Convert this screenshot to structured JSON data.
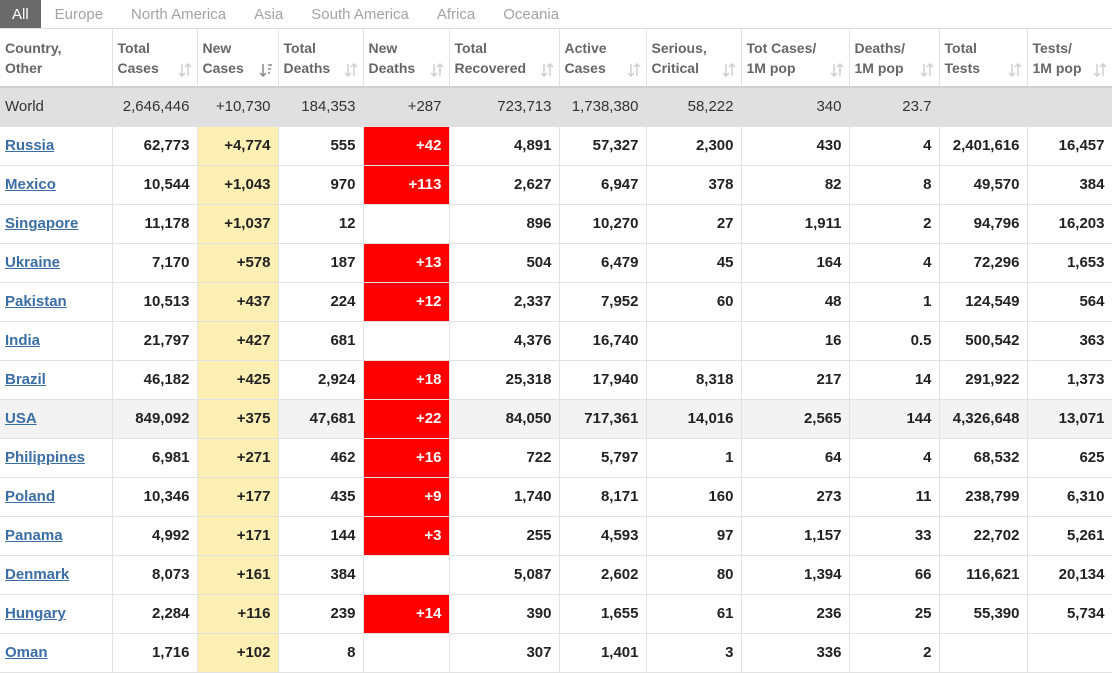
{
  "tabs": [
    "All",
    "Europe",
    "North America",
    "Asia",
    "South America",
    "Africa",
    "Oceania"
  ],
  "columns": [
    "Country,\nOther",
    "Total\nCases",
    "New\nCases",
    "Total\nDeaths",
    "New\nDeaths",
    "Total\nRecovered",
    "Active\nCases",
    "Serious,\nCritical",
    "Tot Cases/\n1M pop",
    "Deaths/\n1M pop",
    "Total\nTests",
    "Tests/\n1M pop"
  ],
  "world": [
    "World",
    "2,646,446",
    "+10,730",
    "184,353",
    "+287",
    "723,713",
    "1,738,380",
    "58,222",
    "340",
    "23.7",
    "",
    ""
  ],
  "rows": [
    [
      "Russia",
      "62,773",
      "+4,774",
      "555",
      "+42",
      "4,891",
      "57,327",
      "2,300",
      "430",
      "4",
      "2,401,616",
      "16,457"
    ],
    [
      "Mexico",
      "10,544",
      "+1,043",
      "970",
      "+113",
      "2,627",
      "6,947",
      "378",
      "82",
      "8",
      "49,570",
      "384"
    ],
    [
      "Singapore",
      "11,178",
      "+1,037",
      "12",
      "",
      "896",
      "10,270",
      "27",
      "1,911",
      "2",
      "94,796",
      "16,203"
    ],
    [
      "Ukraine",
      "7,170",
      "+578",
      "187",
      "+13",
      "504",
      "6,479",
      "45",
      "164",
      "4",
      "72,296",
      "1,653"
    ],
    [
      "Pakistan",
      "10,513",
      "+437",
      "224",
      "+12",
      "2,337",
      "7,952",
      "60",
      "48",
      "1",
      "124,549",
      "564"
    ],
    [
      "India",
      "21,797",
      "+427",
      "681",
      "",
      "4,376",
      "16,740",
      "",
      "16",
      "0.5",
      "500,542",
      "363"
    ],
    [
      "Brazil",
      "46,182",
      "+425",
      "2,924",
      "+18",
      "25,318",
      "17,940",
      "8,318",
      "217",
      "14",
      "291,922",
      "1,373"
    ],
    [
      "USA",
      "849,092",
      "+375",
      "47,681",
      "+22",
      "84,050",
      "717,361",
      "14,016",
      "2,565",
      "144",
      "4,326,648",
      "13,071"
    ],
    [
      "Philippines",
      "6,981",
      "+271",
      "462",
      "+16",
      "722",
      "5,797",
      "1",
      "64",
      "4",
      "68,532",
      "625"
    ],
    [
      "Poland",
      "10,346",
      "+177",
      "435",
      "+9",
      "1,740",
      "8,171",
      "160",
      "273",
      "11",
      "238,799",
      "6,310"
    ],
    [
      "Panama",
      "4,992",
      "+171",
      "144",
      "+3",
      "255",
      "4,593",
      "97",
      "1,157",
      "33",
      "22,702",
      "5,261"
    ],
    [
      "Denmark",
      "8,073",
      "+161",
      "384",
      "",
      "5,087",
      "2,602",
      "80",
      "1,394",
      "66",
      "116,621",
      "20,134"
    ],
    [
      "Hungary",
      "2,284",
      "+116",
      "239",
      "+14",
      "390",
      "1,655",
      "61",
      "236",
      "25",
      "55,390",
      "5,734"
    ],
    [
      "Oman",
      "1,716",
      "+102",
      "8",
      "",
      "307",
      "1,401",
      "3",
      "336",
      "2",
      "",
      ""
    ]
  ],
  "colors": {
    "new_cases_bg": "#fcefb4",
    "new_deaths_bg": "#ff0000",
    "link": "#3a6ea5",
    "world_bg": "#e0e0e0"
  },
  "icons": {
    "sort": "sort-arrows-icon",
    "sort_active": "sort-desc-icon"
  }
}
